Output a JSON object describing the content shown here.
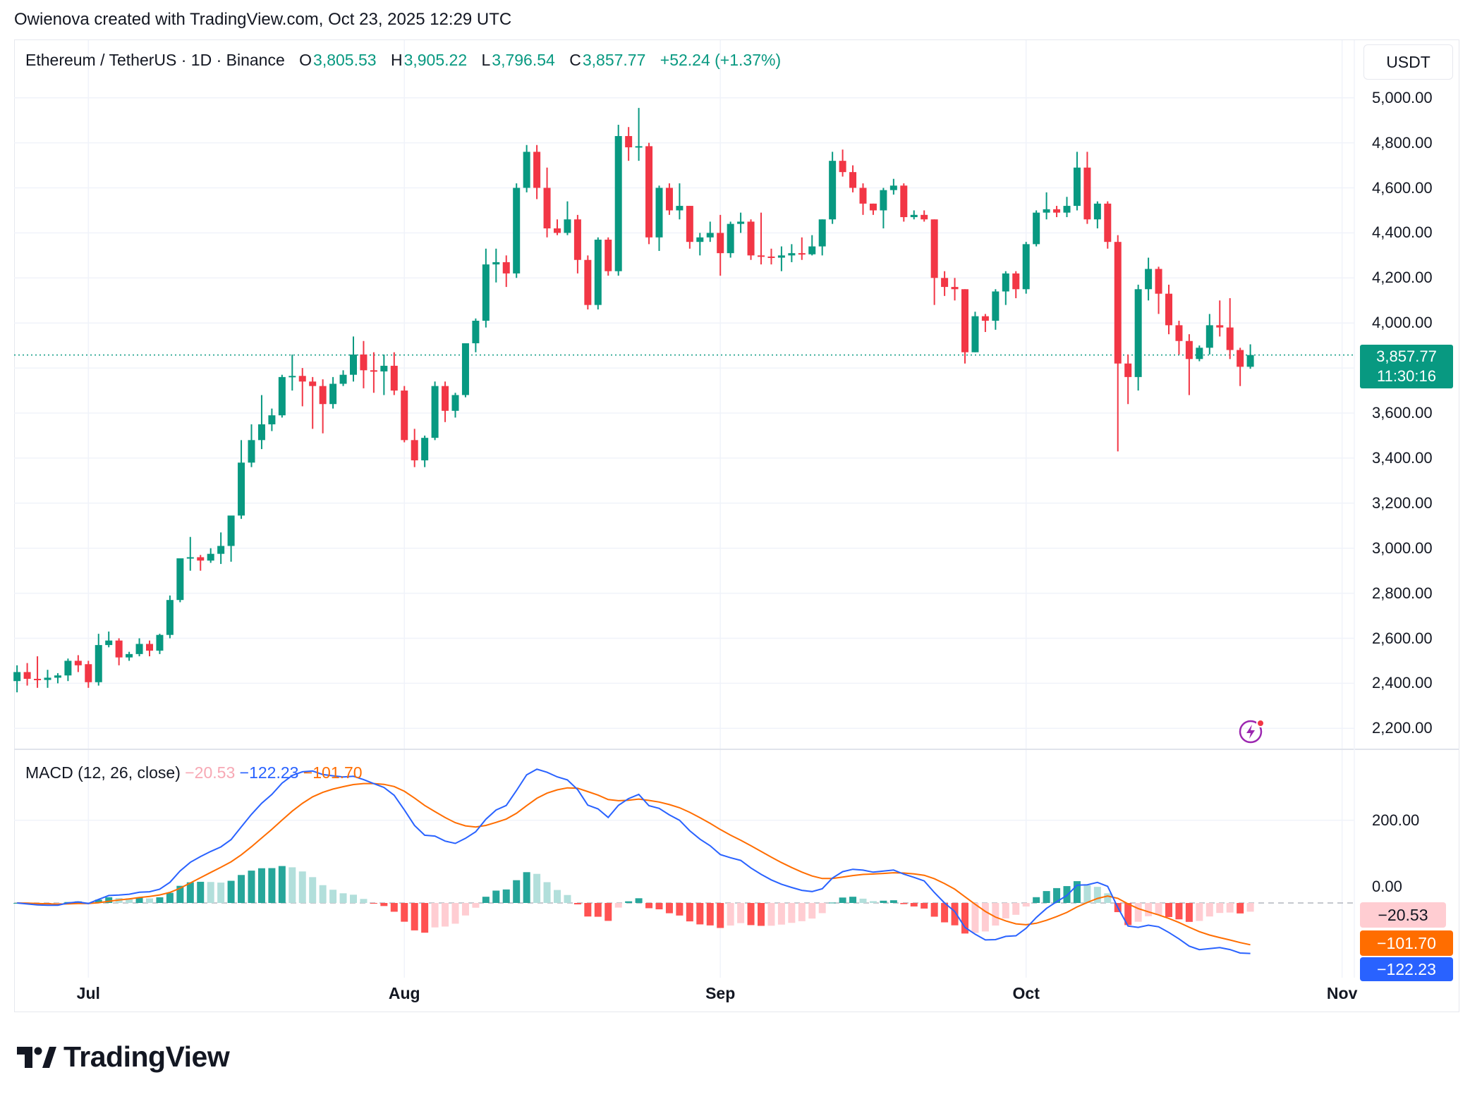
{
  "attribution": "Owienova created with TradingView.com, Oct 23, 2025 12:29 UTC",
  "legend": {
    "symbol": "Ethereum / TetherUS · 1D · Binance",
    "o_label": "O",
    "o": "3,805.53",
    "h_label": "H",
    "h": "3,905.22",
    "l_label": "L",
    "l": "3,796.54",
    "c_label": "C",
    "c": "3,857.77",
    "change": "+52.24 (+1.37%)"
  },
  "currency_button": "USDT",
  "current_price": {
    "price": "3,857.77",
    "countdown": "11:30:16",
    "value": 3857.77,
    "color": "#089981"
  },
  "price_axis_labels": [
    "5,000.00",
    "4,800.00",
    "4,600.00",
    "4,400.00",
    "4,200.00",
    "4,000.00",
    "3,600.00",
    "3,400.00",
    "3,200.00",
    "3,000.00",
    "2,800.00",
    "2,600.00",
    "2,400.00",
    "2,200.00"
  ],
  "macd": {
    "title": "MACD (12, 26, close)",
    "hist_value": "−20.53",
    "macd_value": "−122.23",
    "signal_value": "−101.70",
    "axis_labels": [
      "200.00",
      "0.00"
    ],
    "box_hist": "−20.53",
    "box_signal": "−101.70",
    "box_macd": "−122.23",
    "colors": {
      "macd": "#2962ff",
      "signal": "#ff6d00",
      "hist_up_grow": "#26a69a",
      "hist_up_fall": "#b2dfdb",
      "hist_down_grow": "#ff5252",
      "hist_down_fall": "#ffcdd2"
    }
  },
  "time_axis_labels": [
    "Jul",
    "Aug",
    "Sep",
    "Oct",
    "Nov"
  ],
  "logo_text": "TradingView",
  "icons": {
    "alert": "lightning-icon"
  },
  "chart_data": {
    "type": "candlestick",
    "title": "Ethereum / TetherUS · 1D · Binance",
    "ylim": [
      2150,
      5050
    ],
    "macd_ylim": [
      -170,
      340
    ],
    "grid": true,
    "colors": {
      "up": "#089981",
      "down": "#f23645"
    },
    "candles_columns": [
      "date",
      "open",
      "high",
      "low",
      "close"
    ],
    "candles": [
      [
        "2025-06-24",
        2410,
        2480,
        2360,
        2450
      ],
      [
        "2025-06-25",
        2450,
        2490,
        2390,
        2420
      ],
      [
        "2025-06-26",
        2420,
        2520,
        2380,
        2415
      ],
      [
        "2025-06-27",
        2415,
        2460,
        2380,
        2425
      ],
      [
        "2025-06-28",
        2425,
        2445,
        2400,
        2435
      ],
      [
        "2025-06-29",
        2435,
        2510,
        2410,
        2500
      ],
      [
        "2025-06-30",
        2500,
        2525,
        2450,
        2480
      ],
      [
        "2025-07-01",
        2485,
        2500,
        2380,
        2405
      ],
      [
        "2025-07-02",
        2405,
        2620,
        2390,
        2570
      ],
      [
        "2025-07-03",
        2570,
        2630,
        2560,
        2590
      ],
      [
        "2025-07-04",
        2590,
        2600,
        2480,
        2515
      ],
      [
        "2025-07-05",
        2515,
        2540,
        2500,
        2530
      ],
      [
        "2025-07-06",
        2530,
        2600,
        2520,
        2575
      ],
      [
        "2025-07-07",
        2575,
        2590,
        2520,
        2545
      ],
      [
        "2025-07-08",
        2545,
        2620,
        2530,
        2615
      ],
      [
        "2025-07-09",
        2615,
        2790,
        2600,
        2770
      ],
      [
        "2025-07-10",
        2770,
        2950,
        2760,
        2955
      ],
      [
        "2025-07-11",
        2955,
        3050,
        2900,
        2960
      ],
      [
        "2025-07-12",
        2960,
        2970,
        2900,
        2945
      ],
      [
        "2025-07-13",
        2945,
        3000,
        2935,
        2975
      ],
      [
        "2025-07-14",
        2975,
        3070,
        2930,
        3010
      ],
      [
        "2025-07-15",
        3010,
        3140,
        2940,
        3145
      ],
      [
        "2025-07-16",
        3145,
        3480,
        3130,
        3380
      ],
      [
        "2025-07-17",
        3380,
        3550,
        3360,
        3480
      ],
      [
        "2025-07-18",
        3480,
        3680,
        3440,
        3550
      ],
      [
        "2025-07-19",
        3550,
        3620,
        3520,
        3590
      ],
      [
        "2025-07-20",
        3590,
        3770,
        3580,
        3760
      ],
      [
        "2025-07-21",
        3760,
        3860,
        3700,
        3765
      ],
      [
        "2025-07-22",
        3765,
        3800,
        3630,
        3740
      ],
      [
        "2025-07-23",
        3740,
        3760,
        3530,
        3720
      ],
      [
        "2025-07-24",
        3720,
        3750,
        3510,
        3640
      ],
      [
        "2025-07-25",
        3640,
        3760,
        3620,
        3730
      ],
      [
        "2025-07-26",
        3730,
        3790,
        3720,
        3770
      ],
      [
        "2025-07-27",
        3770,
        3940,
        3740,
        3860
      ],
      [
        "2025-07-28",
        3860,
        3920,
        3710,
        3790
      ],
      [
        "2025-07-29",
        3790,
        3870,
        3690,
        3785
      ],
      [
        "2025-07-30",
        3785,
        3860,
        3680,
        3810
      ],
      [
        "2025-07-31",
        3810,
        3870,
        3680,
        3700
      ],
      [
        "2025-08-01",
        3700,
        3720,
        3470,
        3480
      ],
      [
        "2025-08-02",
        3480,
        3530,
        3360,
        3390
      ],
      [
        "2025-08-03",
        3390,
        3500,
        3360,
        3490
      ],
      [
        "2025-08-04",
        3490,
        3740,
        3480,
        3720
      ],
      [
        "2025-08-05",
        3720,
        3740,
        3560,
        3610
      ],
      [
        "2025-08-06",
        3610,
        3690,
        3580,
        3680
      ],
      [
        "2025-08-07",
        3680,
        3910,
        3670,
        3910
      ],
      [
        "2025-08-08",
        3910,
        4020,
        3870,
        4010
      ],
      [
        "2025-08-09",
        4010,
        4330,
        3980,
        4260
      ],
      [
        "2025-08-10",
        4260,
        4330,
        4180,
        4270
      ],
      [
        "2025-08-11",
        4270,
        4300,
        4160,
        4220
      ],
      [
        "2025-08-12",
        4220,
        4620,
        4200,
        4600
      ],
      [
        "2025-08-13",
        4600,
        4790,
        4580,
        4760
      ],
      [
        "2025-08-14",
        4760,
        4790,
        4550,
        4600
      ],
      [
        "2025-08-15",
        4600,
        4690,
        4380,
        4420
      ],
      [
        "2025-08-16",
        4420,
        4460,
        4390,
        4400
      ],
      [
        "2025-08-17",
        4400,
        4540,
        4390,
        4460
      ],
      [
        "2025-08-18",
        4460,
        4480,
        4220,
        4280
      ],
      [
        "2025-08-19",
        4280,
        4300,
        4060,
        4080
      ],
      [
        "2025-08-20",
        4080,
        4380,
        4060,
        4370
      ],
      [
        "2025-08-21",
        4370,
        4380,
        4210,
        4230
      ],
      [
        "2025-08-22",
        4230,
        4880,
        4210,
        4830
      ],
      [
        "2025-08-23",
        4830,
        4870,
        4720,
        4780
      ],
      [
        "2025-08-24",
        4780,
        4955,
        4720,
        4785
      ],
      [
        "2025-08-25",
        4785,
        4800,
        4350,
        4380
      ],
      [
        "2025-08-26",
        4380,
        4610,
        4320,
        4600
      ],
      [
        "2025-08-27",
        4600,
        4620,
        4480,
        4500
      ],
      [
        "2025-08-28",
        4500,
        4620,
        4460,
        4520
      ],
      [
        "2025-08-29",
        4520,
        4520,
        4330,
        4360
      ],
      [
        "2025-08-30",
        4360,
        4400,
        4300,
        4380
      ],
      [
        "2025-08-31",
        4380,
        4450,
        4360,
        4400
      ],
      [
        "2025-09-01",
        4400,
        4480,
        4210,
        4310
      ],
      [
        "2025-09-02",
        4310,
        4450,
        4290,
        4440
      ],
      [
        "2025-09-03",
        4440,
        4490,
        4400,
        4450
      ],
      [
        "2025-09-04",
        4450,
        4460,
        4280,
        4300
      ],
      [
        "2025-09-05",
        4300,
        4490,
        4260,
        4295
      ],
      [
        "2025-09-06",
        4295,
        4330,
        4260,
        4290
      ],
      [
        "2025-09-07",
        4290,
        4340,
        4230,
        4300
      ],
      [
        "2025-09-08",
        4300,
        4350,
        4270,
        4310
      ],
      [
        "2025-09-09",
        4310,
        4380,
        4280,
        4305
      ],
      [
        "2025-09-10",
        4305,
        4390,
        4300,
        4340
      ],
      [
        "2025-09-11",
        4340,
        4460,
        4300,
        4460
      ],
      [
        "2025-09-12",
        4460,
        4760,
        4440,
        4720
      ],
      [
        "2025-09-13",
        4720,
        4770,
        4650,
        4670
      ],
      [
        "2025-09-14",
        4670,
        4700,
        4580,
        4600
      ],
      [
        "2025-09-15",
        4600,
        4620,
        4480,
        4530
      ],
      [
        "2025-09-16",
        4530,
        4530,
        4480,
        4500
      ],
      [
        "2025-09-17",
        4500,
        4600,
        4420,
        4590
      ],
      [
        "2025-09-18",
        4590,
        4640,
        4570,
        4610
      ],
      [
        "2025-09-19",
        4610,
        4620,
        4450,
        4470
      ],
      [
        "2025-09-20",
        4470,
        4500,
        4460,
        4480
      ],
      [
        "2025-09-21",
        4480,
        4500,
        4450,
        4460
      ],
      [
        "2025-09-22",
        4460,
        4460,
        4080,
        4200
      ],
      [
        "2025-09-23",
        4200,
        4230,
        4120,
        4160
      ],
      [
        "2025-09-24",
        4160,
        4200,
        4100,
        4150
      ],
      [
        "2025-09-25",
        4150,
        4150,
        3820,
        3870
      ],
      [
        "2025-09-26",
        3870,
        4050,
        3870,
        4030
      ],
      [
        "2025-09-27",
        4030,
        4040,
        3960,
        4010
      ],
      [
        "2025-09-28",
        4010,
        4150,
        3970,
        4140
      ],
      [
        "2025-09-29",
        4140,
        4230,
        4080,
        4220
      ],
      [
        "2025-09-30",
        4220,
        4230,
        4110,
        4150
      ],
      [
        "2025-10-01",
        4150,
        4360,
        4130,
        4350
      ],
      [
        "2025-10-02",
        4350,
        4500,
        4340,
        4490
      ],
      [
        "2025-10-03",
        4490,
        4580,
        4460,
        4505
      ],
      [
        "2025-10-04",
        4505,
        4520,
        4470,
        4490
      ],
      [
        "2025-10-05",
        4490,
        4560,
        4470,
        4520
      ],
      [
        "2025-10-06",
        4520,
        4760,
        4500,
        4690
      ],
      [
        "2025-10-07",
        4690,
        4760,
        4440,
        4460
      ],
      [
        "2025-10-08",
        4460,
        4540,
        4420,
        4530
      ],
      [
        "2025-10-09",
        4530,
        4540,
        4330,
        4360
      ],
      [
        "2025-10-10",
        4360,
        4390,
        3430,
        3820
      ],
      [
        "2025-10-11",
        3820,
        3860,
        3640,
        3760
      ],
      [
        "2025-10-12",
        3760,
        4170,
        3700,
        4150
      ],
      [
        "2025-10-13",
        4150,
        4290,
        4100,
        4240
      ],
      [
        "2025-10-14",
        4240,
        4250,
        4040,
        4130
      ],
      [
        "2025-10-15",
        4130,
        4170,
        3950,
        3990
      ],
      [
        "2025-10-16",
        3990,
        4010,
        3860,
        3920
      ],
      [
        "2025-10-17",
        3920,
        3950,
        3680,
        3840
      ],
      [
        "2025-10-18",
        3840,
        3900,
        3830,
        3890
      ],
      [
        "2025-10-19",
        3890,
        4040,
        3860,
        3990
      ],
      [
        "2025-10-20",
        3990,
        4100,
        3940,
        3980
      ],
      [
        "2025-10-21",
        3980,
        4110,
        3840,
        3880
      ],
      [
        "2025-10-22",
        3880,
        3890,
        3720,
        3805.53
      ],
      [
        "2025-10-23",
        3805.53,
        3905.22,
        3796.54,
        3857.77
      ]
    ]
  }
}
